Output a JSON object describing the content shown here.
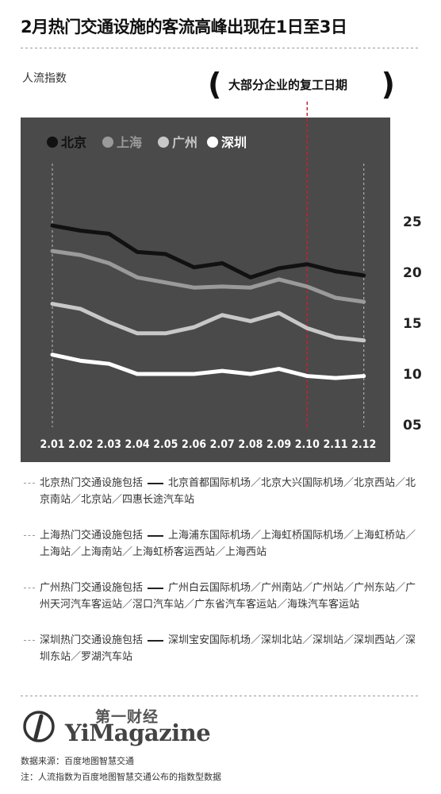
{
  "title": "2月热门交通设施的客流高峰出现在1日至3日",
  "annotation": "大部分企业的复工日期",
  "notes": [
    {
      "lead": "北京热门交通设施包括",
      "body": "北京首都国际机场／北京大兴国际机场／北京西站／北京南站／北京站／四惠长途汽车站"
    },
    {
      "lead": "上海热门交通设施包括",
      "body": "上海浦东国际机场／上海虹桥国际机场／上海虹桥站／上海站／上海南站／上海虹桥客运西站／上海西站"
    },
    {
      "lead": "广州热门交通设施包括",
      "body": "广州白云国际机场／广州南站／广州站／广州东站／广州天河汽车客运站／滘口汽车站／广东省汽车客运站／海珠汽车客运站"
    },
    {
      "lead": "深圳热门交通设施包括",
      "body": "深圳宝安国际机场／深圳北站／深圳站／深圳西站／深圳东站／罗湖汽车站"
    }
  ],
  "logo": {
    "cn": "第一财经",
    "en": "YiMagazine"
  },
  "source": "数据来源：百度地图智慧交通",
  "note": "注：人流指数为百度地图智慧交通公布的指数型数据",
  "colors": {
    "plot_bg": "#4a4a4a",
    "beijing": "#111111",
    "shanghai": "#9a9a9a",
    "guangzhou": "#c8c8c8",
    "shenzhen": "#ffffff",
    "marker_line": "#cc1f2b"
  },
  "chart_data": {
    "type": "line",
    "ylabel": "人流指数",
    "xlabel": "",
    "x": [
      "2.01",
      "2.02",
      "2.03",
      "2.04",
      "2.05",
      "2.06",
      "2.07",
      "2.08",
      "2.09",
      "2.10",
      "2.11",
      "2.12"
    ],
    "yticks": [
      "05",
      "10",
      "15",
      "20",
      "25"
    ],
    "ylim": [
      5,
      25
    ],
    "grid": false,
    "legend_position": "top-left",
    "highlight_x": "2.10",
    "series": [
      {
        "name": "北京",
        "color": "#111111",
        "values": [
          24.6,
          24.1,
          23.8,
          22.0,
          21.8,
          20.5,
          20.9,
          19.5,
          20.4,
          20.8,
          20.1,
          19.7
        ]
      },
      {
        "name": "上海",
        "color": "#9a9a9a",
        "values": [
          22.1,
          21.7,
          20.9,
          19.5,
          19.0,
          18.5,
          18.6,
          18.5,
          19.3,
          18.6,
          17.5,
          17.1
        ]
      },
      {
        "name": "广州",
        "color": "#c8c8c8",
        "values": [
          16.9,
          16.4,
          15.1,
          14.0,
          14.0,
          14.6,
          15.8,
          15.2,
          16.0,
          14.5,
          13.6,
          13.3
        ]
      },
      {
        "name": "深圳",
        "color": "#ffffff",
        "values": [
          11.9,
          11.3,
          11.0,
          10.0,
          10.0,
          10.0,
          10.3,
          10.0,
          10.5,
          9.8,
          9.6,
          9.8
        ]
      }
    ]
  }
}
